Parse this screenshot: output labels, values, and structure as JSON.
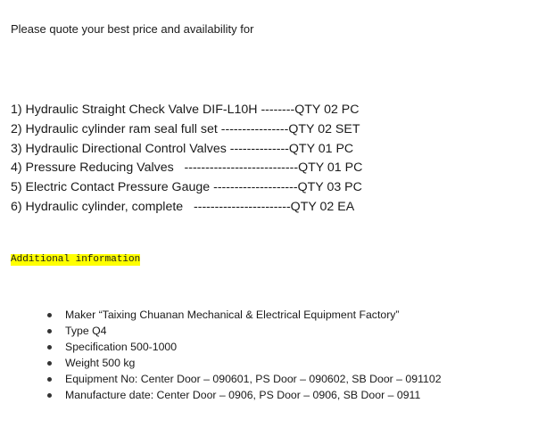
{
  "intro": "Please quote your best price and availability for",
  "items": [
    "1) Hydraulic Straight Check Valve DIF-L10H --------QTY 02 PC",
    "2) Hydraulic cylinder ram seal full set ----------------QTY 02 SET",
    "3) Hydraulic Directional Control Valves --------------QTY 01 PC",
    "4) Pressure Reducing Valves   ---------------------------QTY 01 PC",
    "5) Electric Contact Pressure Gauge --------------------QTY 03 PC",
    "6) Hydraulic cylinder, complete   -----------------------QTY 02 EA"
  ],
  "additional_heading": "Additional information",
  "highlight_color": "#ffff00",
  "details": [
    "Maker “Taixing Chuanan Mechanical & Electrical Equipment Factory”",
    "Type Q4",
    "Specification 500-1000",
    "Weight 500 kg",
    "Equipment No: Center Door – 090601, PS Door – 090602, SB Door – 091102",
    "Manufacture date: Center Door – 0906, PS Door – 0906, SB Door – 0911"
  ]
}
